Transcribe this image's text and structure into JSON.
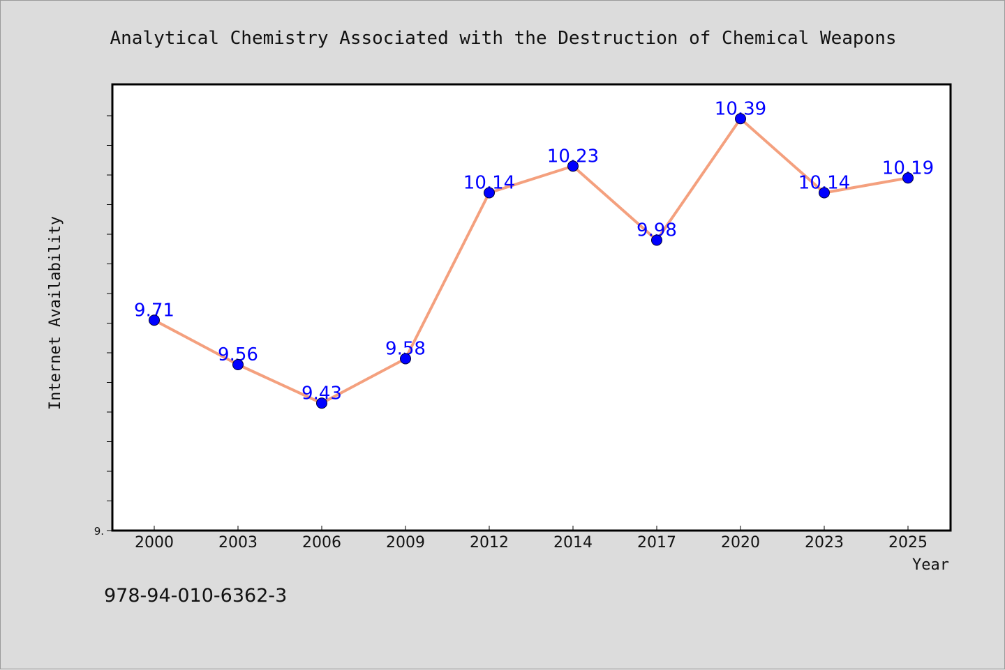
{
  "chart_data": {
    "type": "line",
    "title": "Analytical Chemistry Associated with the Destruction of Chemical Weapons",
    "xlabel": "Year",
    "ylabel": "Internet Availability",
    "categories": [
      "2000",
      "2003",
      "2006",
      "2009",
      "2012",
      "2014",
      "2017",
      "2020",
      "2023",
      "2025"
    ],
    "series": [
      {
        "values": [
          9.71,
          9.56,
          9.43,
          9.58,
          10.14,
          10.23,
          9.98,
          10.39,
          10.14,
          10.19
        ],
        "labels": [
          "9.71",
          "9.56",
          "9.43",
          "9.58",
          "10.14",
          "10.23",
          "9.98",
          "10.39",
          "10.14",
          "10.19"
        ]
      }
    ],
    "ylim": [
      9.0,
      10.5
    ],
    "yticks_major": [
      9.0
    ],
    "ytick_labels": [
      "9."
    ],
    "yticks_minor_step": 0.1,
    "grid": false,
    "colors": {
      "line": "#f4a07e",
      "marker": "#0000ff",
      "label": "#0000ff"
    }
  },
  "footer": {
    "isbn": "978-94-010-6362-3"
  }
}
